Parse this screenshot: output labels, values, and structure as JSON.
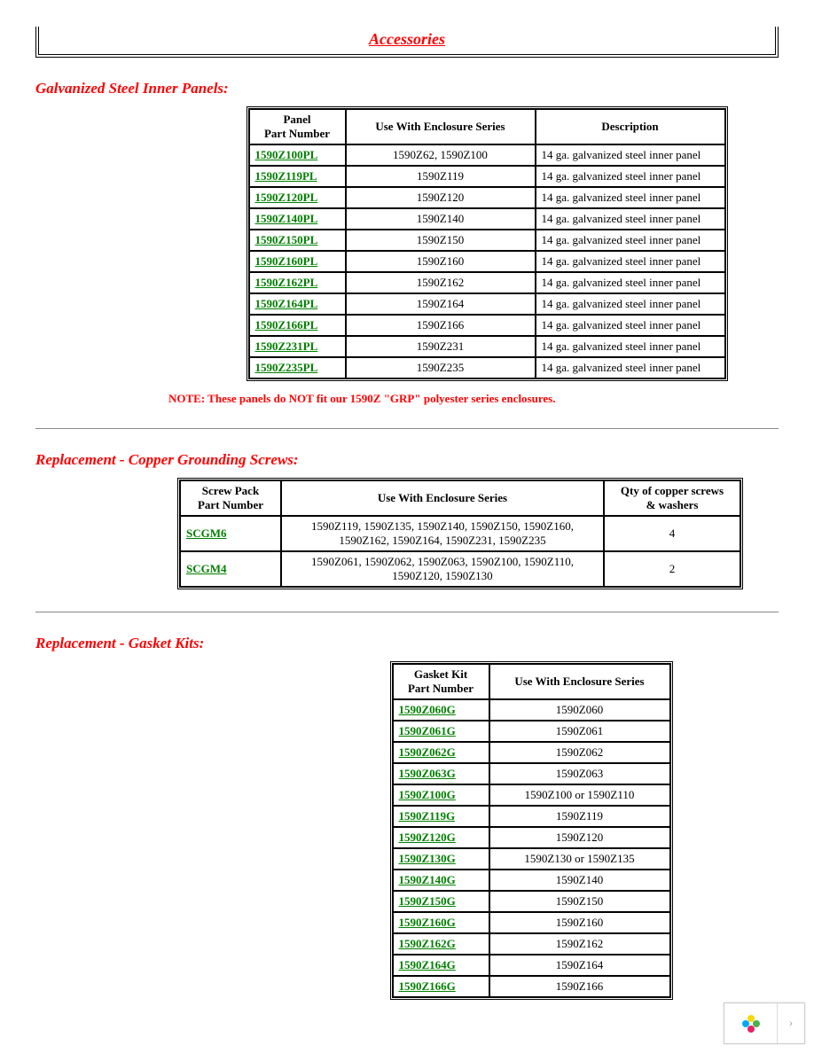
{
  "title": "Accessories",
  "section1": {
    "heading": "Galvanized Steel Inner Panels:",
    "columns": [
      "Panel\nPart Number",
      "Use With Enclosure Series",
      "Description"
    ],
    "col_widths": [
      "95px",
      "200px",
      "200px"
    ],
    "rows": [
      {
        "pn": "1590Z100PL",
        "use": "1590Z62, 1590Z100",
        "desc": "14 ga. galvanized steel inner panel"
      },
      {
        "pn": "1590Z119PL",
        "use": "1590Z119",
        "desc": "14 ga. galvanized steel inner panel"
      },
      {
        "pn": "1590Z120PL",
        "use": "1590Z120",
        "desc": "14 ga. galvanized steel inner panel"
      },
      {
        "pn": "1590Z140PL",
        "use": "1590Z140",
        "desc": "14 ga. galvanized steel inner panel"
      },
      {
        "pn": "1590Z150PL",
        "use": "1590Z150",
        "desc": "14 ga. galvanized steel inner panel"
      },
      {
        "pn": "1590Z160PL",
        "use": "1590Z160",
        "desc": "14 ga. galvanized steel inner panel"
      },
      {
        "pn": "1590Z162PL",
        "use": "1590Z162",
        "desc": "14 ga. galvanized steel inner panel"
      },
      {
        "pn": "1590Z164PL",
        "use": "1590Z164",
        "desc": "14 ga. galvanized steel inner panel"
      },
      {
        "pn": "1590Z166PL",
        "use": "1590Z166",
        "desc": "14 ga. galvanized steel inner panel"
      },
      {
        "pn": "1590Z231PL",
        "use": "1590Z231",
        "desc": "14 ga. galvanized steel inner panel"
      },
      {
        "pn": "1590Z235PL",
        "use": "1590Z235",
        "desc": "14 ga. galvanized steel inner panel"
      }
    ],
    "note": "NOTE: These panels do NOT fit our 1590Z \"GRP\" polyester series enclosures."
  },
  "section2": {
    "heading": "Replacement - Copper Grounding Screws:",
    "columns": [
      "Screw Pack\nPart Number",
      "Use With Enclosure Series",
      "Qty of copper screws\n& washers"
    ],
    "col_widths": [
      "100px",
      "350px",
      "140px"
    ],
    "rows": [
      {
        "pn": "SCGM6",
        "use": "1590Z119, 1590Z135, 1590Z140, 1590Z150, 1590Z160, 1590Z162, 1590Z164, 1590Z231, 1590Z235",
        "qty": "4"
      },
      {
        "pn": "SCGM4",
        "use": "1590Z061, 1590Z062, 1590Z063, 1590Z100, 1590Z110, 1590Z120, 1590Z130",
        "qty": "2"
      }
    ]
  },
  "section3": {
    "heading": "Replacement - Gasket Kits:",
    "columns": [
      "Gasket Kit\nPart Number",
      "Use With Enclosure Series"
    ],
    "col_widths": [
      "95px",
      "190px"
    ],
    "rows": [
      {
        "pn": "1590Z060G",
        "use": "1590Z060"
      },
      {
        "pn": "1590Z061G",
        "use": "1590Z061"
      },
      {
        "pn": "1590Z062G",
        "use": "1590Z062"
      },
      {
        "pn": "1590Z063G",
        "use": "1590Z063"
      },
      {
        "pn": "1590Z100G",
        "use": "1590Z100 or 1590Z110"
      },
      {
        "pn": "1590Z119G",
        "use": "1590Z119"
      },
      {
        "pn": "1590Z120G",
        "use": "1590Z120"
      },
      {
        "pn": "1590Z130G",
        "use": "1590Z130 or 1590Z135"
      },
      {
        "pn": "1590Z140G",
        "use": "1590Z140"
      },
      {
        "pn": "1590Z150G",
        "use": "1590Z150"
      },
      {
        "pn": "1590Z160G",
        "use": "1590Z160"
      },
      {
        "pn": "1590Z162G",
        "use": "1590Z162"
      },
      {
        "pn": "1590Z164G",
        "use": "1590Z164"
      },
      {
        "pn": "1590Z166G",
        "use": "1590Z166"
      }
    ]
  },
  "colors": {
    "heading_red": "#ff0000",
    "link_green": "#008000",
    "border_black": "#000000",
    "hr_gray": "#888888"
  }
}
